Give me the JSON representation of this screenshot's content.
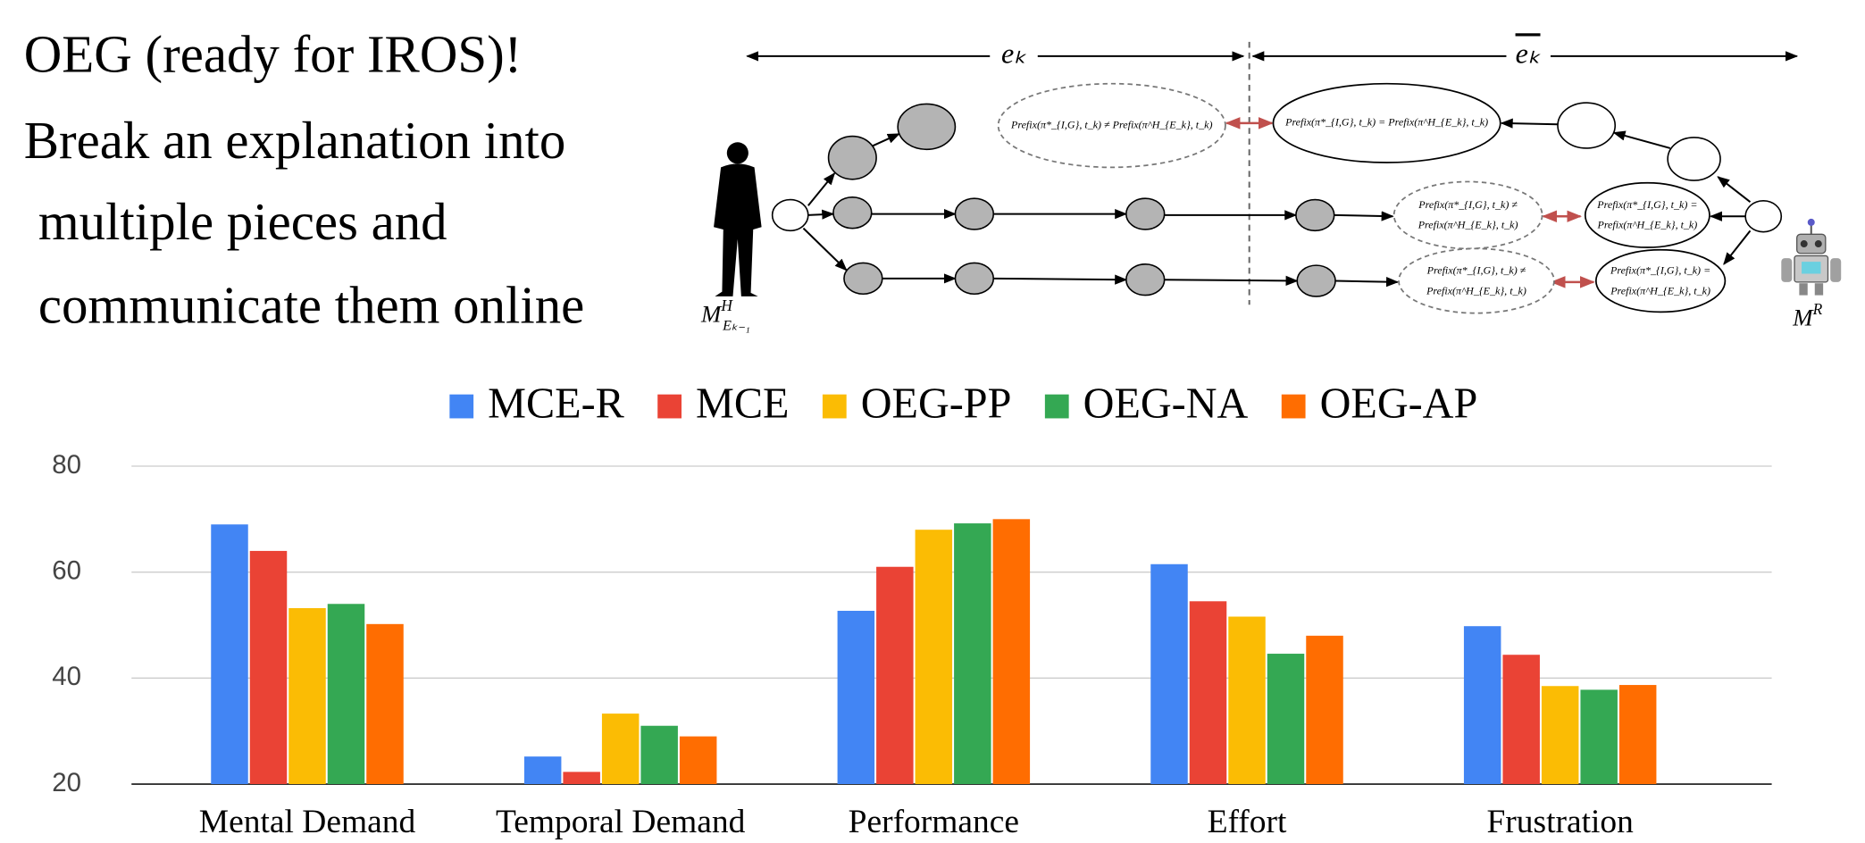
{
  "slide": {
    "lines": [
      "OEG (ready for IROS)!",
      "Break an explanation into",
      "multiple pieces and",
      "communicate them online"
    ]
  },
  "diagram": {
    "e_k": "eₖ",
    "e_k_bar": "eₖ",
    "human": {
      "base": "M",
      "sup": "H",
      "sub": "Eₖ₋₁"
    },
    "robot": {
      "base": "M",
      "sup": "R"
    },
    "top_left": "Prefix(π*_{I,G}, t_k) ≠ Prefix(π^H_{E_k}, t_k)",
    "top_right": "Prefix(π*_{I,G}, t_k) = Prefix(π^H_{E_k}, t_k)",
    "mid_left": [
      "Prefix(π*_{I,G}, t_k) ≠",
      "Prefix(π^H_{E_k}, t_k)"
    ],
    "mid_right": [
      "Prefix(π*_{I,G}, t_k) =",
      "Prefix(π^H_{E_k}, t_k)"
    ],
    "bot_left": [
      "Prefix(π*_{I,G}, t_k) ≠",
      "Prefix(π^H_{E_k}, t_k)"
    ],
    "bot_right": [
      "Prefix(π*_{I,G}, t_k) =",
      "Prefix(π^H_{E_k}, t_k)"
    ]
  },
  "chart_data": {
    "type": "bar",
    "categories": [
      "Mental Demand",
      "Temporal Demand",
      "Performance",
      "Effort",
      "Frustration"
    ],
    "series": [
      {
        "name": "MCE-R",
        "color": "#4285f4",
        "values": [
          69,
          25.2,
          52.7,
          61.5,
          49.8
        ]
      },
      {
        "name": "MCE",
        "color": "#ea4335",
        "values": [
          64,
          22.3,
          61,
          54.5,
          44.4
        ]
      },
      {
        "name": "OEG-PP",
        "color": "#fbbc04",
        "values": [
          53.2,
          33.3,
          68,
          51.6,
          38.5
        ]
      },
      {
        "name": "OEG-NA",
        "color": "#34a853",
        "values": [
          54,
          31,
          69.2,
          44.6,
          37.8
        ]
      },
      {
        "name": "OEG-AP",
        "color": "#ff6d01",
        "values": [
          50.2,
          29,
          70,
          48,
          38.7
        ]
      }
    ],
    "ylim": [
      20,
      80
    ],
    "yticks": [
      20,
      40,
      60,
      80
    ],
    "grid": true,
    "legend": "top"
  }
}
